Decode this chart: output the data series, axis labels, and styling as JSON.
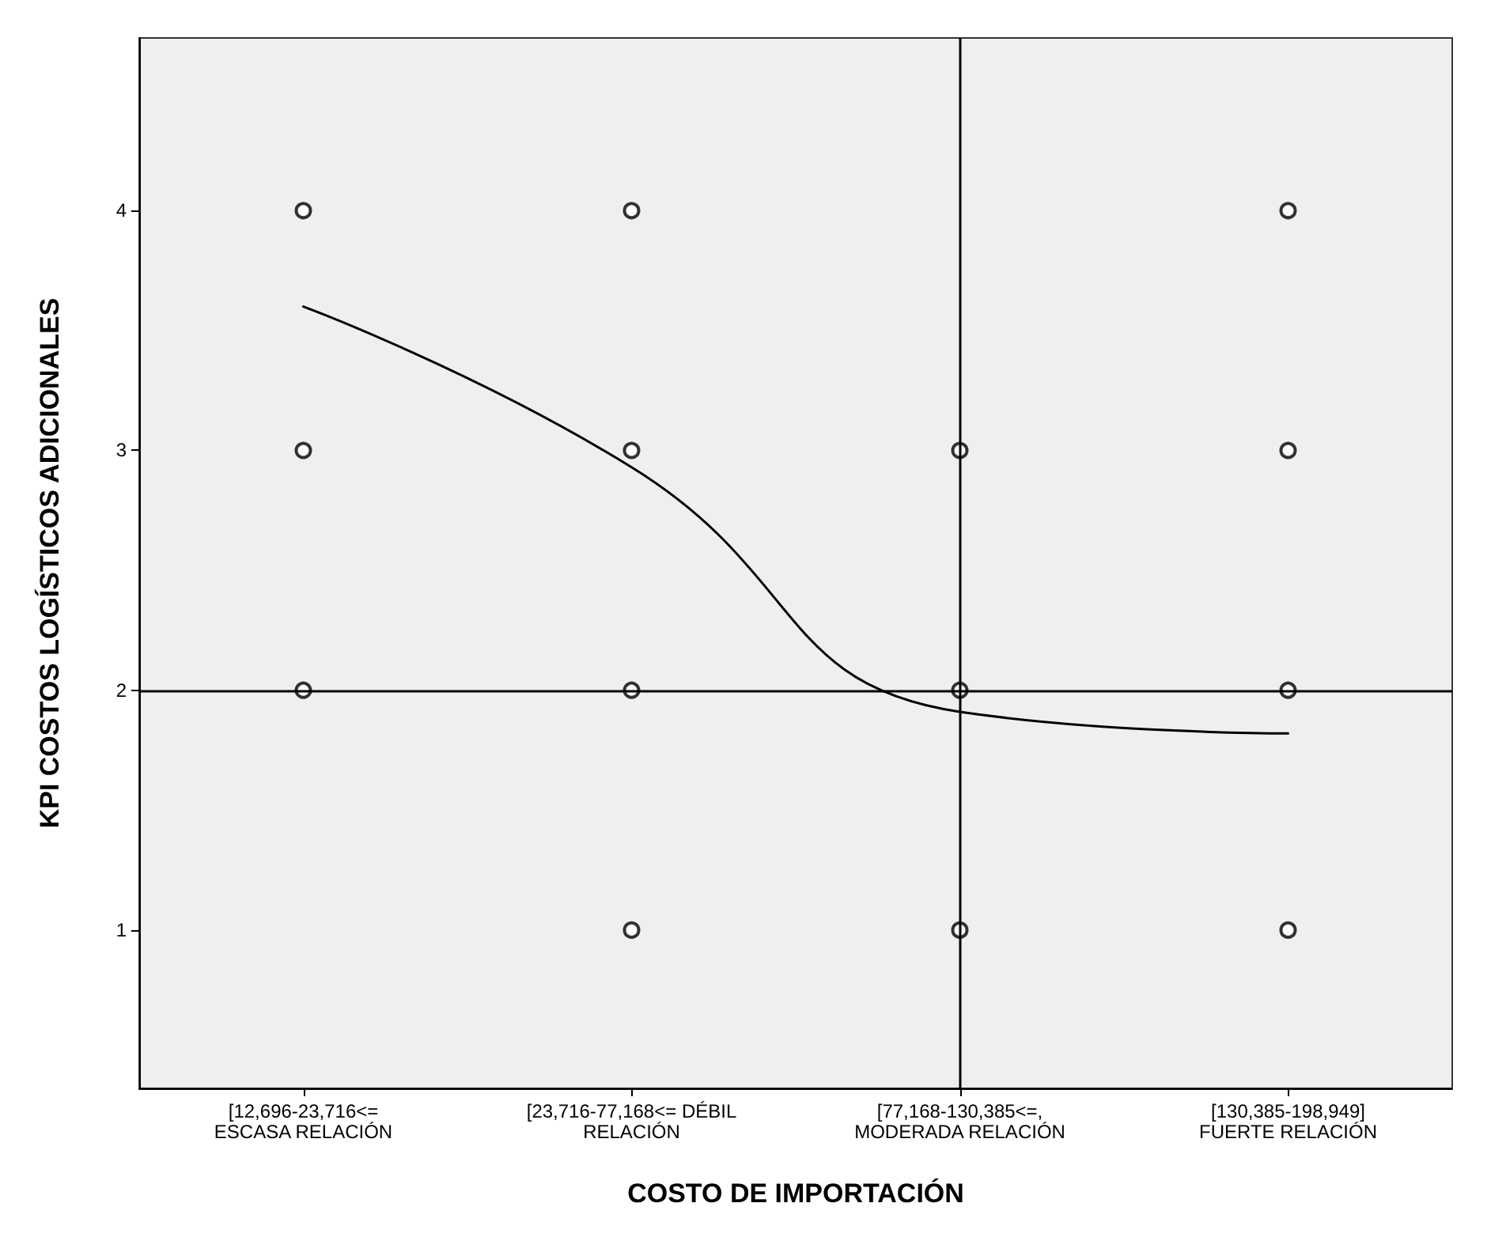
{
  "chart_data": {
    "type": "scatter",
    "xlabel": "COSTO DE IMPORTACIÓN",
    "ylabel": "KPI COSTOS LOGÍSTICOS ADICIONALES",
    "categories": [
      "[12,696-23,716<=\nESCASA RELACIÓN",
      "[23,716-77,168<= DÉBIL\nRELACIÓN",
      "[77,168-130,385<=,\nMODERADA RELACIÓN",
      "[130,385-198,949]\nFUERTE RELACIÓN"
    ],
    "series": [
      {
        "color": "#000000",
        "marker": "circle",
        "x": [
          "[12,696-23,716<=\nESCASA RELACIÓN",
          "[12,696-23,716<=\nESCASA RELACIÓN",
          "[12,696-23,716<=\nESCASA RELACIÓN",
          "[23,716-77,168<= DÉBIL\nRELACIÓN",
          "[23,716-77,168<= DÉBIL\nRELACIÓN",
          "[23,716-77,168<= DÉBIL\nRELACIÓN",
          "[23,716-77,168<= DÉBIL\nRELACIÓN",
          "[77,168-130,385<=,\nMODERADA RELACIÓN",
          "[77,168-130,385<=,\nMODERADA RELACIÓN",
          "[77,168-130,385<=,\nMODERADA RELACIÓN",
          "[130,385-198,949]\nFUERTE RELACIÓN",
          "[130,385-198,949]\nFUERTE RELACIÓN",
          "[130,385-198,949]\nFUERTE RELACIÓN",
          "[130,385-198,949]\nFUERTE RELACIÓN"
        ],
        "values": [
          4,
          3,
          2,
          4,
          3,
          2,
          1,
          3,
          2,
          1,
          4,
          3,
          2,
          1
        ]
      },
      {
        "type": "line",
        "marker": "none",
        "color": "#000000",
        "x": [
          "[12,696-23,716<=\nESCASA RELACIÓN",
          "[23,716-77,168<= DÉBIL\nRELACIÓN",
          "[77,168-130,385<=,\nMODERADA RELACIÓN",
          "[130,385-198,949]\nFUERTE RELACIÓN"
        ],
        "values": [
          3.6,
          2.93,
          1.91,
          1.82
        ]
      }
    ],
    "ylim": [
      0.34,
      4.72
    ],
    "yticks": [
      1,
      2,
      3,
      4
    ],
    "grid": false,
    "line_style": "solid",
    "ref_lines": [
      {
        "axis": "x",
        "value": "[77,168-130,385<=,\nMODERADA RELACIÓN",
        "color": "#000000"
      },
      {
        "axis": "y",
        "value": 2,
        "color": "#000000"
      }
    ]
  }
}
